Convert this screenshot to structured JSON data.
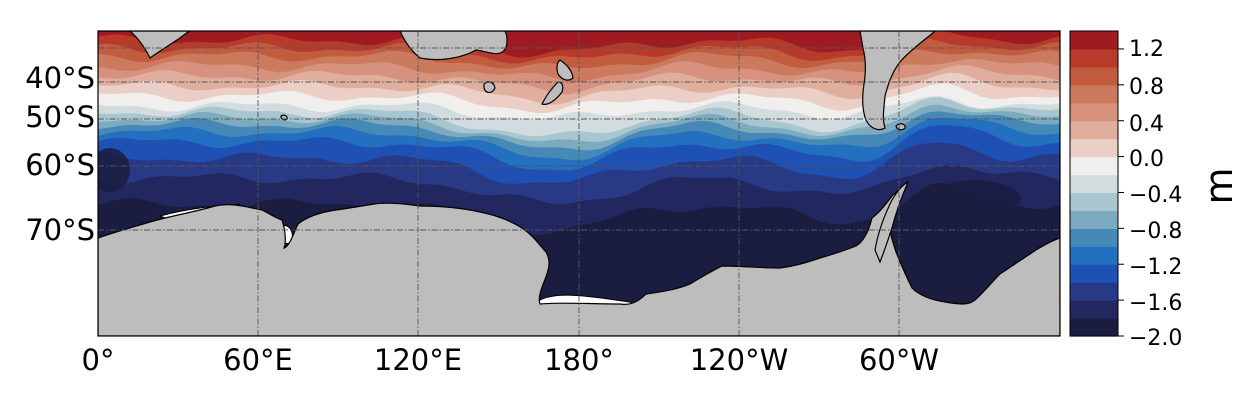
{
  "map": {
    "latitude_labels": [
      "40°S",
      "50°S",
      "60°S",
      "70°S"
    ],
    "longitude_labels": [
      "0°",
      "60°E",
      "120°E",
      "180°",
      "120°W",
      "60°W"
    ],
    "land_color": "#bdbdbd",
    "gridline_style": "dash-dot"
  },
  "colorbar": {
    "unit_label": "m",
    "tick_labels": [
      "1.2",
      "0.8",
      "0.4",
      "0.0",
      "−0.4",
      "−0.8",
      "−1.2",
      "−1.6",
      "−2.0"
    ],
    "range": [
      -2.0,
      1.4
    ],
    "step": 0.2,
    "colors": [
      "#1a1d40",
      "#22275f",
      "#283a86",
      "#1f50b4",
      "#2270bf",
      "#4688b6",
      "#7cabc0",
      "#a7c6cf",
      "#d2dcdf",
      "#f1eeee",
      "#ebcec5",
      "#dfae9d",
      "#d6927e",
      "#cc7a5e",
      "#c25c3f",
      "#b83a2b",
      "#9e1b22"
    ]
  }
}
